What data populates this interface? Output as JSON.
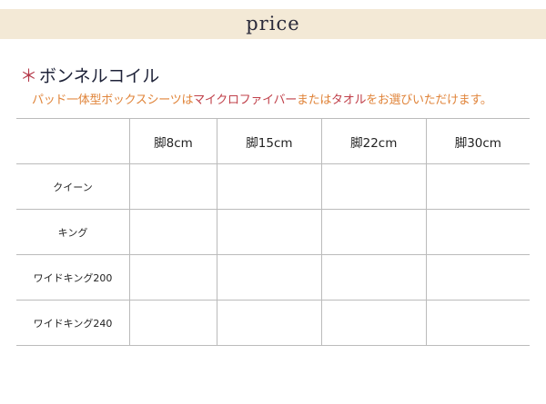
{
  "banner": {
    "title": "price"
  },
  "section": {
    "marker": "＊",
    "title": "ボンネルコイル"
  },
  "note": {
    "parts": [
      "パッド一体型ボックスシーツは",
      "マイクロファイバー",
      "または",
      "タオル",
      "をお選びいただけます。"
    ]
  },
  "colors": {
    "note": "#e0843a",
    "highlight": "#c0404a",
    "banner": "#f3e9d6",
    "marker": "#b5394a"
  },
  "table": {
    "columns": [
      "",
      "脚8cm",
      "脚15cm",
      "脚22cm",
      "脚30cm"
    ],
    "rows": [
      {
        "label": "クイーン",
        "cells": [
          "",
          "",
          "",
          ""
        ]
      },
      {
        "label": "キング",
        "cells": [
          "",
          "",
          "",
          ""
        ]
      },
      {
        "label": "ワイドキング200",
        "cells": [
          "",
          "",
          "",
          ""
        ]
      },
      {
        "label": "ワイドキング240",
        "cells": [
          "",
          "",
          "",
          ""
        ]
      }
    ]
  }
}
